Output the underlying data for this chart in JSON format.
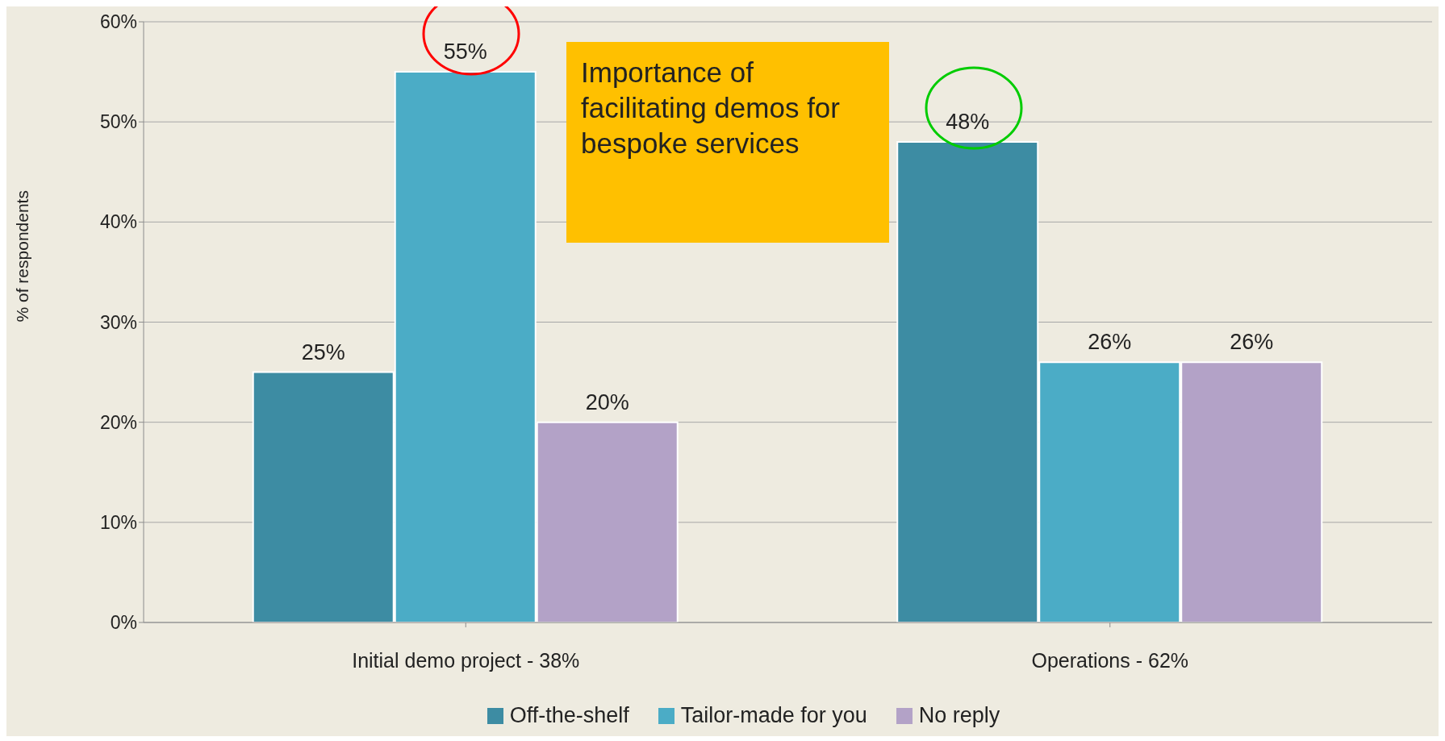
{
  "chart_data": {
    "type": "bar",
    "categories": [
      "Initial demo project - 38%",
      "Operations - 62%"
    ],
    "series": [
      {
        "name": "Off-the-shelf",
        "color": "#3d8ca3",
        "values": [
          25,
          48
        ],
        "value_labels": [
          "25%",
          "48%"
        ]
      },
      {
        "name": "Tailor-made for you",
        "color": "#4bacc6",
        "values": [
          55,
          26
        ],
        "value_labels": [
          "55%",
          "26%"
        ]
      },
      {
        "name": "No reply",
        "color": "#b3a2c7",
        "values": [
          20,
          26
        ],
        "value_labels": [
          "20%",
          "26%"
        ]
      }
    ],
    "ylabel": "% of respondents",
    "ylim": [
      0,
      60
    ],
    "yticks": [
      {
        "value": 0,
        "label": "0%"
      },
      {
        "value": 10,
        "label": "10%"
      },
      {
        "value": 20,
        "label": "20%"
      },
      {
        "value": 30,
        "label": "30%"
      },
      {
        "value": 40,
        "label": "40%"
      },
      {
        "value": 50,
        "label": "50%"
      },
      {
        "value": 60,
        "label": "60%"
      }
    ],
    "annotations": [
      "Importance of facilitating demos for bespoke services"
    ],
    "grid": "y",
    "legend": "bottom"
  }
}
